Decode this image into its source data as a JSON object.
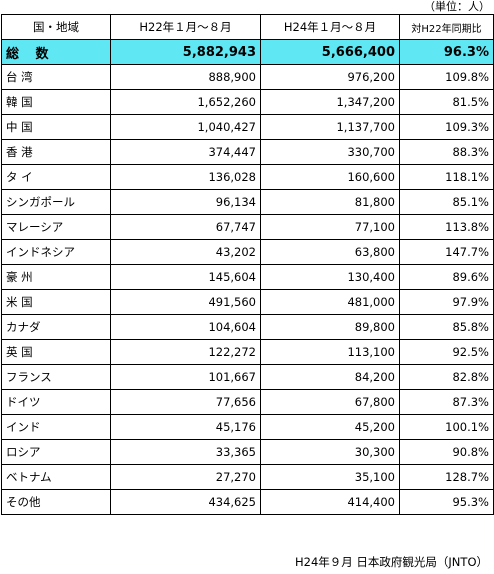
{
  "unit_note": "（単位：人）",
  "headers": {
    "region": "国・地域",
    "h22": "H22年１月～８月",
    "h24": "H24年１月～８月",
    "ratio": "対H22年同期比"
  },
  "total": {
    "name": "総 数",
    "h22": "5,882,943",
    "h24": "5,666,400",
    "ratio": "96.3%"
  },
  "rows": [
    {
      "name": "台 湾",
      "h22": "888,900",
      "h24": "976,200",
      "ratio": "109.8%"
    },
    {
      "name": "韓 国",
      "h22": "1,652,260",
      "h24": "1,347,200",
      "ratio": "81.5%"
    },
    {
      "name": "中 国",
      "h22": "1,040,427",
      "h24": "1,137,700",
      "ratio": "109.3%"
    },
    {
      "name": "香 港",
      "h22": "374,447",
      "h24": "330,700",
      "ratio": "88.3%"
    },
    {
      "name": "タ イ",
      "h22": "136,028",
      "h24": "160,600",
      "ratio": "118.1%"
    },
    {
      "name": "シンガポール",
      "h22": "96,134",
      "h24": "81,800",
      "ratio": "85.1%"
    },
    {
      "name": "マレーシア",
      "h22": "67,747",
      "h24": "77,100",
      "ratio": "113.8%"
    },
    {
      "name": "インドネシア",
      "h22": "43,202",
      "h24": "63,800",
      "ratio": "147.7%"
    },
    {
      "name": "豪 州",
      "h22": "145,604",
      "h24": "130,400",
      "ratio": "89.6%"
    },
    {
      "name": "米 国",
      "h22": "491,560",
      "h24": "481,000",
      "ratio": "97.9%"
    },
    {
      "name": "カナダ",
      "h22": "104,604",
      "h24": "89,800",
      "ratio": "85.8%"
    },
    {
      "name": "英 国",
      "h22": "122,272",
      "h24": "113,100",
      "ratio": "92.5%"
    },
    {
      "name": "フランス",
      "h22": "101,667",
      "h24": "84,200",
      "ratio": "82.8%"
    },
    {
      "name": "ドイツ",
      "h22": "77,656",
      "h24": "67,800",
      "ratio": "87.3%"
    },
    {
      "name": "インド",
      "h22": "45,176",
      "h24": "45,200",
      "ratio": "100.1%"
    },
    {
      "name": "ロシア",
      "h22": "33,365",
      "h24": "30,300",
      "ratio": "90.8%"
    },
    {
      "name": "ベトナム",
      "h22": "27,270",
      "h24": "35,100",
      "ratio": "128.7%"
    },
    {
      "name": "その他",
      "h22": "434,625",
      "h24": "414,400",
      "ratio": "95.3%"
    }
  ],
  "source": "H24年９月 日本政府観光局（JNTO）",
  "colors": {
    "total_row_bg": "#5fe7f3"
  }
}
